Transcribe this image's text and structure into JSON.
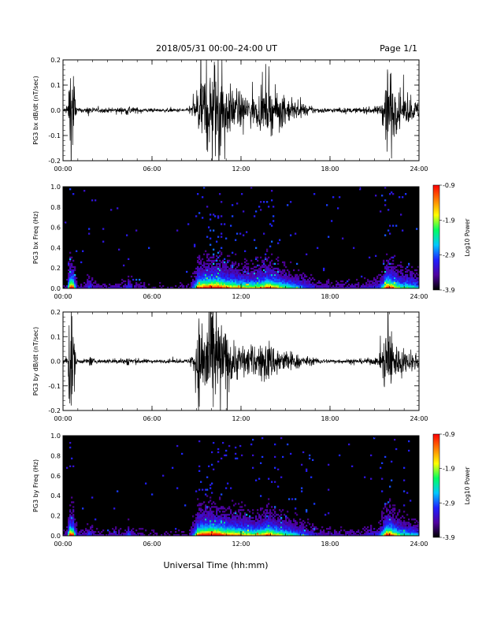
{
  "header": {
    "title": "2018/05/31   00:00–24:00 UT",
    "page": "Page 1/1"
  },
  "footer": {
    "xlabel": "Universal Time (hh:mm)"
  },
  "chart_data": [
    {
      "type": "line",
      "ylabel": "PG3 bx dB/dt (nT/sec)",
      "xlim": [
        0,
        24
      ],
      "ylim": [
        -0.2,
        0.2
      ],
      "x_ticks": [
        "00:00",
        "06:00",
        "12:00",
        "18:00",
        "24:00"
      ],
      "y_ticks": [
        "-0.2",
        "-0.1",
        "0.0",
        "0.1",
        "0.2"
      ],
      "color": "#000000",
      "activity": {
        "x_hours": [
          0.0,
          0.3,
          0.45,
          0.55,
          0.7,
          0.85,
          1.0,
          1.5,
          1.8,
          2.1,
          2.6,
          3.5,
          4.2,
          4.4,
          4.7,
          6.0,
          7.5,
          8.5,
          8.9,
          9.1,
          9.5,
          10.0,
          10.3,
          10.6,
          11.0,
          11.5,
          12.0,
          12.8,
          13.5,
          13.8,
          14.1,
          14.6,
          15.2,
          16.0,
          17.0,
          18.0,
          20.0,
          21.3,
          21.6,
          21.8,
          22.0,
          22.3,
          22.8,
          23.2,
          23.6,
          24.0
        ],
        "amplitude": [
          0.01,
          0.02,
          0.25,
          0.25,
          0.25,
          0.04,
          0.01,
          0.01,
          0.03,
          0.01,
          0.01,
          0.012,
          0.015,
          0.03,
          0.015,
          0.008,
          0.008,
          0.01,
          0.06,
          0.15,
          0.18,
          0.2,
          0.28,
          0.25,
          0.13,
          0.1,
          0.08,
          0.07,
          0.09,
          0.11,
          0.1,
          0.08,
          0.06,
          0.03,
          0.015,
          0.01,
          0.012,
          0.02,
          0.08,
          0.25,
          0.25,
          0.12,
          0.06,
          0.06,
          0.05,
          0.04
        ]
      }
    },
    {
      "type": "heatmap",
      "ylabel": "PG3 bx Freq (Hz)",
      "xlim": [
        0,
        24
      ],
      "ylim": [
        0,
        1.0
      ],
      "x_ticks": [
        "00:00",
        "06:00",
        "12:00",
        "18:00",
        "24:00"
      ],
      "y_ticks": [
        "0.0",
        "0.2",
        "0.4",
        "0.6",
        "0.8",
        "1.0"
      ],
      "colorbar": {
        "label": "Log10 Power",
        "ticks": [
          "-0.9",
          "-1.9",
          "-2.9",
          "-3.9"
        ],
        "range": [
          -3.9,
          -0.9
        ],
        "colors": [
          "#000000",
          "#5000a0",
          "#2020ff",
          "#00c8ff",
          "#00ff60",
          "#ffff00",
          "#ff8000",
          "#ff0000"
        ]
      },
      "activity": {
        "x_hours": [
          0.0,
          0.3,
          0.45,
          0.55,
          0.7,
          0.85,
          1.0,
          1.5,
          1.8,
          2.1,
          2.6,
          3.5,
          4.2,
          4.4,
          4.7,
          6.0,
          7.5,
          8.5,
          8.9,
          9.1,
          9.5,
          10.0,
          10.3,
          10.6,
          11.0,
          11.5,
          12.0,
          12.8,
          13.5,
          13.8,
          14.1,
          14.6,
          15.2,
          16.0,
          17.0,
          18.0,
          20.0,
          21.3,
          21.6,
          21.8,
          22.0,
          22.3,
          22.8,
          23.2,
          23.6,
          24.0
        ],
        "level": [
          0.1,
          0.2,
          0.9,
          0.9,
          0.85,
          0.3,
          0.15,
          0.15,
          0.3,
          0.15,
          0.12,
          0.15,
          0.15,
          0.3,
          0.15,
          0.1,
          0.1,
          0.12,
          0.4,
          0.8,
          0.85,
          0.9,
          0.95,
          0.9,
          0.75,
          0.7,
          0.65,
          0.6,
          0.7,
          0.85,
          0.75,
          0.6,
          0.5,
          0.35,
          0.2,
          0.15,
          0.15,
          0.25,
          0.5,
          0.9,
          0.9,
          0.7,
          0.5,
          0.5,
          0.45,
          0.4
        ]
      }
    },
    {
      "type": "line",
      "ylabel": "PG3 by dB/dt (nT/sec)",
      "xlim": [
        0,
        24
      ],
      "ylim": [
        -0.2,
        0.2
      ],
      "x_ticks": [
        "00:00",
        "06:00",
        "12:00",
        "18:00",
        "24:00"
      ],
      "y_ticks": [
        "-0.2",
        "-0.1",
        "0.0",
        "0.1",
        "0.2"
      ],
      "color": "#000000",
      "activity": {
        "x_hours": [
          0.0,
          0.3,
          0.45,
          0.55,
          0.7,
          0.85,
          1.0,
          1.5,
          1.8,
          2.1,
          2.6,
          3.5,
          4.2,
          4.4,
          4.7,
          6.0,
          7.5,
          8.5,
          8.9,
          9.1,
          9.5,
          10.0,
          10.3,
          10.6,
          11.0,
          11.5,
          12.0,
          12.8,
          13.5,
          13.8,
          14.1,
          14.6,
          15.2,
          16.0,
          17.0,
          18.0,
          20.0,
          21.3,
          21.6,
          21.8,
          22.0,
          22.3,
          22.8,
          23.2,
          23.6,
          24.0
        ],
        "amplitude": [
          0.01,
          0.02,
          0.25,
          0.25,
          0.22,
          0.04,
          0.01,
          0.01,
          0.025,
          0.01,
          0.01,
          0.012,
          0.015,
          0.03,
          0.015,
          0.008,
          0.008,
          0.01,
          0.08,
          0.2,
          0.25,
          0.28,
          0.25,
          0.22,
          0.14,
          0.1,
          0.09,
          0.07,
          0.08,
          0.12,
          0.08,
          0.07,
          0.05,
          0.03,
          0.015,
          0.01,
          0.012,
          0.02,
          0.1,
          0.22,
          0.2,
          0.1,
          0.06,
          0.05,
          0.04,
          0.03
        ]
      }
    },
    {
      "type": "heatmap",
      "ylabel": "PG3 by Freq (Hz)",
      "xlim": [
        0,
        24
      ],
      "ylim": [
        0,
        1.0
      ],
      "x_ticks": [
        "00:00",
        "06:00",
        "12:00",
        "18:00",
        "24:00"
      ],
      "y_ticks": [
        "0.0",
        "0.2",
        "0.4",
        "0.6",
        "0.8",
        "1.0"
      ],
      "colorbar": {
        "label": "Log10 Power",
        "ticks": [
          "-0.9",
          "-1.9",
          "-2.9",
          "-3.9"
        ],
        "range": [
          -3.9,
          -0.9
        ],
        "colors": [
          "#000000",
          "#5000a0",
          "#2020ff",
          "#00c8ff",
          "#00ff60",
          "#ffff00",
          "#ff8000",
          "#ff0000"
        ]
      },
      "activity": {
        "x_hours": [
          0.0,
          0.3,
          0.45,
          0.55,
          0.7,
          0.85,
          1.0,
          1.5,
          1.8,
          2.1,
          2.6,
          3.5,
          4.2,
          4.4,
          4.7,
          6.0,
          7.5,
          8.5,
          8.9,
          9.1,
          9.5,
          10.0,
          10.3,
          10.6,
          11.0,
          11.5,
          12.0,
          12.8,
          13.5,
          13.8,
          14.1,
          14.6,
          15.2,
          16.0,
          17.0,
          18.0,
          20.0,
          21.3,
          21.6,
          21.8,
          22.0,
          22.3,
          22.8,
          23.2,
          23.6,
          24.0
        ],
        "level": [
          0.1,
          0.2,
          0.9,
          0.9,
          0.85,
          0.3,
          0.15,
          0.15,
          0.3,
          0.15,
          0.12,
          0.15,
          0.15,
          0.3,
          0.15,
          0.1,
          0.1,
          0.12,
          0.45,
          0.85,
          0.9,
          0.95,
          0.95,
          0.9,
          0.8,
          0.75,
          0.7,
          0.62,
          0.7,
          0.85,
          0.72,
          0.6,
          0.5,
          0.35,
          0.2,
          0.15,
          0.15,
          0.25,
          0.55,
          0.9,
          0.9,
          0.7,
          0.5,
          0.45,
          0.4,
          0.35
        ]
      }
    }
  ]
}
